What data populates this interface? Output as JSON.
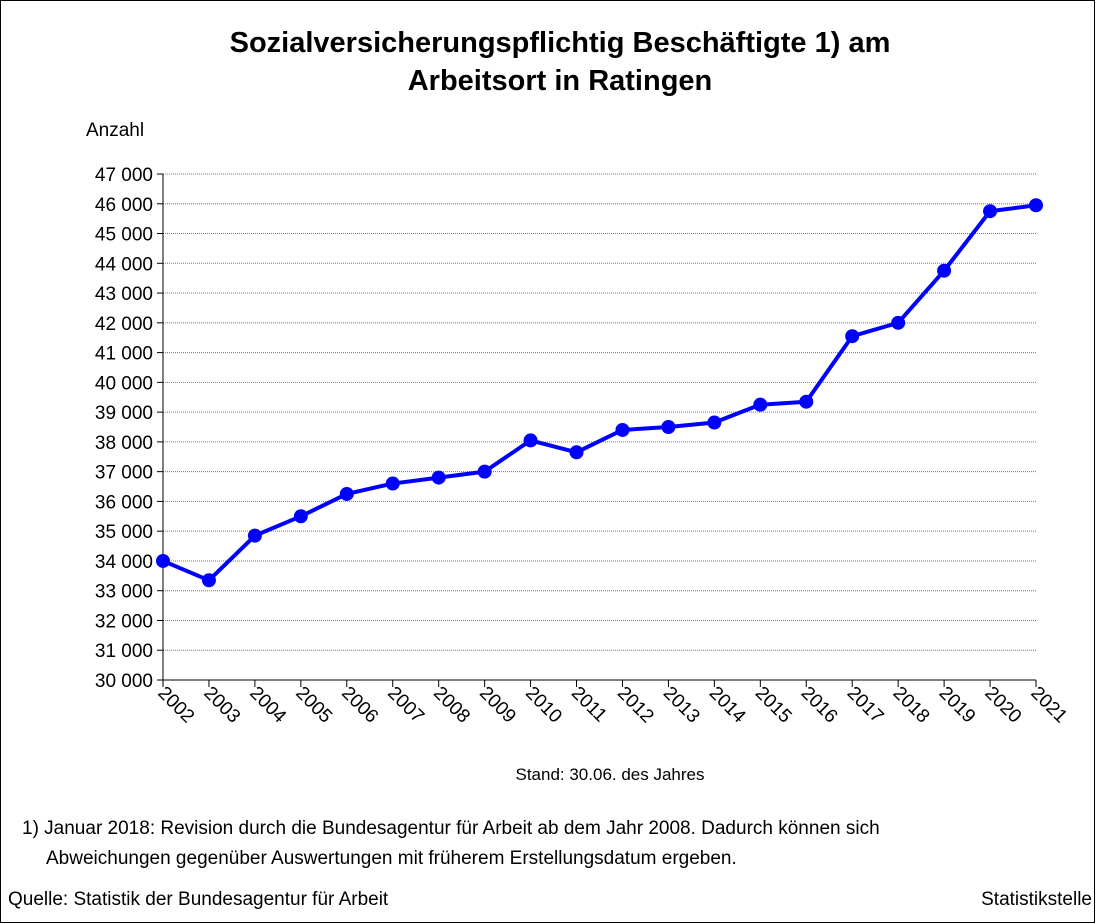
{
  "chart_data": {
    "type": "line",
    "title": [
      "Sozialversicherungspflichtig Beschäftigte 1) am",
      "Arbeitsort in Ratingen"
    ],
    "y_label": "Anzahl",
    "note": "Stand: 30.06. des Jahres",
    "footnote": [
      "1) Januar 2018: Revision durch die Bundesagentur für Arbeit ab dem Jahr 2008. Dadurch können sich",
      "Abweichungen gegenüber Auswertungen mit früherem Erstellungsdatum ergeben."
    ],
    "source": "Quelle: Statistik der Bundesagentur für Arbeit",
    "publisher": "Statistikstelle",
    "categories": [
      "2002",
      "2003",
      "2004",
      "2005",
      "2006",
      "2007",
      "2008",
      "2009",
      "2010",
      "2011",
      "2012",
      "2013",
      "2014",
      "2015",
      "2016",
      "2017",
      "2018",
      "2019",
      "2020",
      "2021"
    ],
    "series": [
      {
        "name": "Beschäftigte",
        "color": "#0000ff",
        "values": [
          34000,
          33350,
          34850,
          35500,
          36250,
          36600,
          36800,
          37000,
          38050,
          37650,
          38400,
          38500,
          38650,
          39250,
          39350,
          41550,
          42000,
          43750,
          45750,
          45950
        ]
      }
    ],
    "ylim": [
      30000,
      47000
    ],
    "yticks": [
      {
        "value": 30000,
        "label": "30 000"
      },
      {
        "value": 31000,
        "label": "31 000"
      },
      {
        "value": 32000,
        "label": "32 000"
      },
      {
        "value": 33000,
        "label": "33 000"
      },
      {
        "value": 34000,
        "label": "34 000"
      },
      {
        "value": 35000,
        "label": "35 000"
      },
      {
        "value": 36000,
        "label": "36 000"
      },
      {
        "value": 37000,
        "label": "37 000"
      },
      {
        "value": 38000,
        "label": "38 000"
      },
      {
        "value": 39000,
        "label": "39 000"
      },
      {
        "value": 40000,
        "label": "40 000"
      },
      {
        "value": 41000,
        "label": "41 000"
      },
      {
        "value": 42000,
        "label": "42 000"
      },
      {
        "value": 43000,
        "label": "43 000"
      },
      {
        "value": 44000,
        "label": "44 000"
      },
      {
        "value": 45000,
        "label": "45 000"
      },
      {
        "value": 46000,
        "label": "46 000"
      },
      {
        "value": 47000,
        "label": "47 000"
      }
    ],
    "grid": true
  }
}
